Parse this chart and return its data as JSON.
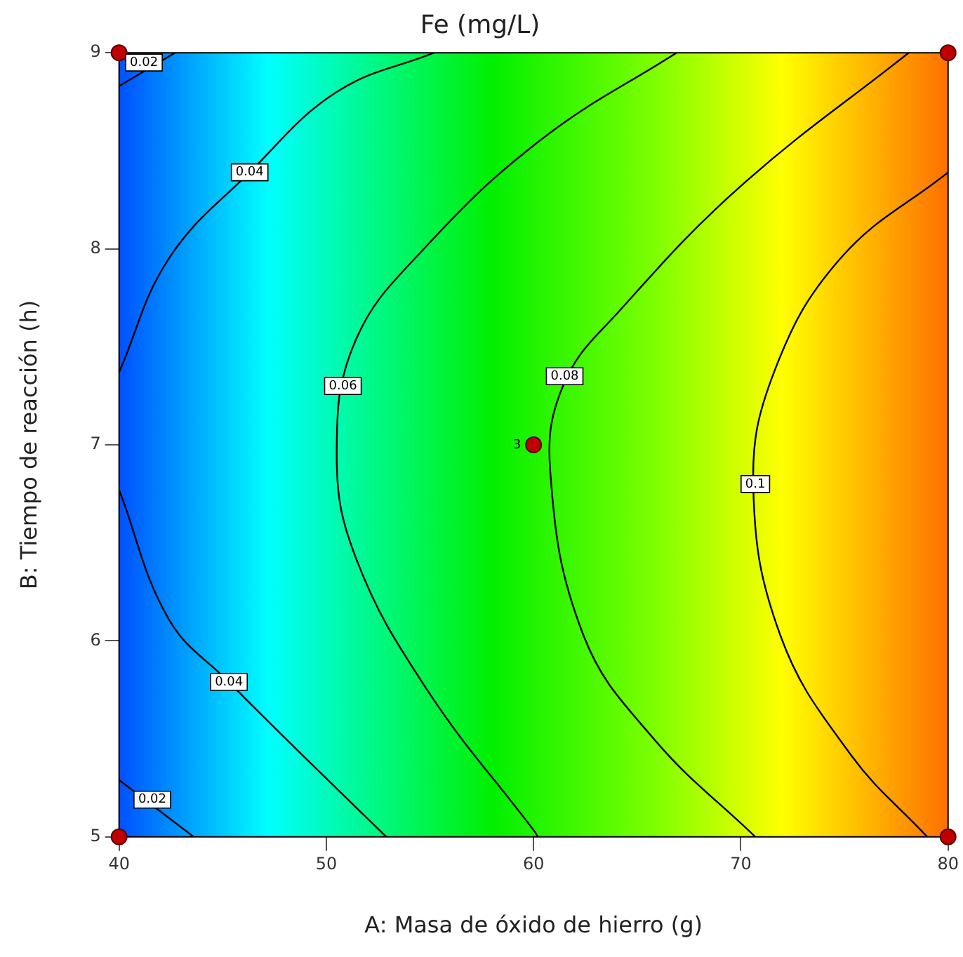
{
  "chart_data": {
    "type": "line",
    "title": "Fe (mg/L)",
    "xlabel": "A: Masa de óxido de hierro (g)",
    "ylabel": "B: Tiempo de reacción (h)",
    "xlim": [
      40,
      80
    ],
    "ylim": [
      5,
      9
    ],
    "xticks": [
      40,
      50,
      60,
      70,
      80
    ],
    "yticks": [
      5,
      6,
      7,
      8,
      9
    ],
    "grid": false,
    "legend": false,
    "line_style": "solid",
    "series": [
      {
        "type": "line",
        "color": "#000000",
        "x": [
          40,
          42.7
        ],
        "values": [
          8.83,
          9
        ]
      },
      {
        "type": "line",
        "color": "#000000",
        "x": [
          40,
          43.6
        ],
        "values": [
          5.29,
          5
        ]
      },
      {
        "type": "line",
        "color": "#000000",
        "x": [
          40,
          42.4,
          46.3,
          50.5,
          55.2
        ],
        "values": [
          7.37,
          7.95,
          8.39,
          8.8,
          9
        ]
      },
      {
        "type": "line",
        "color": "#000000",
        "x": [
          40,
          42.4,
          45.3,
          49.3,
          52.9
        ],
        "values": [
          6.77,
          6.11,
          5.79,
          5.37,
          5
        ]
      },
      {
        "type": "line",
        "color": "#000000",
        "x": [
          66.9,
          60.4,
          54.8,
          51.4,
          50.5,
          51.4,
          54.8,
          60.1,
          60.2
        ],
        "values": [
          9,
          8.56,
          8.01,
          7.53,
          6.95,
          6.43,
          5.76,
          5.02,
          5
        ]
      },
      {
        "type": "line",
        "color": "#000000",
        "x": [
          78.1,
          70,
          64.2,
          61.5,
          60.8,
          62.4,
          65.8,
          70.7
        ],
        "values": [
          9,
          8.32,
          7.69,
          7.32,
          6.87,
          6.03,
          5.5,
          5
        ]
      },
      {
        "type": "line",
        "color": "#000000",
        "x": [
          80,
          74.8,
          71.6,
          70.6,
          71.9,
          75.3,
          79
        ],
        "values": [
          8.39,
          7.95,
          7.37,
          6.79,
          6.03,
          5.42,
          5
        ]
      },
      {
        "type": "scatter",
        "color": "#c00000",
        "marker": "circle",
        "x": [
          40,
          80,
          40,
          80,
          60
        ],
        "values": [
          9,
          9,
          5,
          5,
          7
        ]
      }
    ],
    "annotations": [
      {
        "text": "0.02",
        "x": 41.2,
        "y": 8.95
      },
      {
        "text": "0.02",
        "x": 41.6,
        "y": 5.19
      },
      {
        "text": "0.04",
        "x": 46.3,
        "y": 8.39
      },
      {
        "text": "0.04",
        "x": 45.3,
        "y": 5.79
      },
      {
        "text": "0.06",
        "x": 50.8,
        "y": 7.3
      },
      {
        "text": "0.08",
        "x": 61.5,
        "y": 7.35
      },
      {
        "text": "0.1",
        "x": 70.7,
        "y": 6.8
      },
      {
        "text": "3",
        "x": 60,
        "y": 7
      }
    ]
  }
}
